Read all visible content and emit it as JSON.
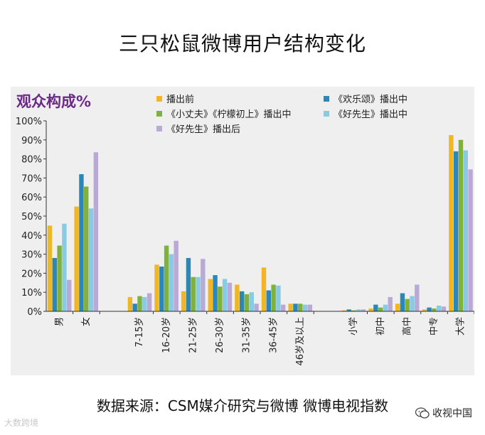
{
  "title": "三只松鼠微博用户结构变化",
  "source": "数据来源：CSM媒介研究与微博 微博电视指数",
  "watermark_left": "大数跨境",
  "watermark_right": "收视中国",
  "chart_data": {
    "type": "bar",
    "title": "观众构成%",
    "ylim": [
      0,
      100
    ],
    "ytick_labels": [
      "0%",
      "10%",
      "20%",
      "30%",
      "40%",
      "50%",
      "60%",
      "70%",
      "80%",
      "90%",
      "100%"
    ],
    "grid": false,
    "legend_position": "top",
    "categories": [
      "男",
      "女",
      "",
      "7-15岁",
      "16-20岁",
      "21-25岁",
      "26-30岁",
      "31-35岁",
      "36-45岁",
      "46岁及以上",
      "",
      "小学",
      "初中",
      "高中",
      "中专",
      "大学"
    ],
    "series": [
      {
        "name": "播出前",
        "color": "#f0b624",
        "values": [
          45,
          55,
          null,
          7.5,
          24.5,
          10.5,
          17,
          14,
          23,
          4,
          null,
          0.5,
          1.5,
          4,
          1,
          92.5
        ]
      },
      {
        "name": "《欢乐颂》播出中",
        "color": "#2d86b8",
        "values": [
          28,
          72,
          null,
          4,
          23.5,
          28,
          19,
          10.5,
          11,
          4,
          null,
          1,
          3.5,
          9.5,
          2,
          84
        ]
      },
      {
        "name": "《小丈夫》《柠檬初上》播出中",
        "color": "#7fb23c",
        "values": [
          34.5,
          65.5,
          null,
          8,
          34.5,
          18,
          13,
          9,
          14,
          4,
          null,
          0.5,
          2,
          6.5,
          1.5,
          90
        ]
      },
      {
        "name": "《好先生》播出中",
        "color": "#88cbe3",
        "values": [
          46,
          54,
          null,
          7.5,
          30,
          18,
          17,
          10,
          13.5,
          3.5,
          null,
          1,
          3.5,
          8,
          3,
          84.5
        ]
      },
      {
        "name": "《好先生》播出后",
        "color": "#b9a9d6",
        "values": [
          16.5,
          83.5,
          null,
          9.5,
          37,
          27.5,
          15,
          4,
          3.5,
          3.5,
          null,
          1,
          7.5,
          14,
          2.5,
          74.5
        ]
      }
    ]
  }
}
